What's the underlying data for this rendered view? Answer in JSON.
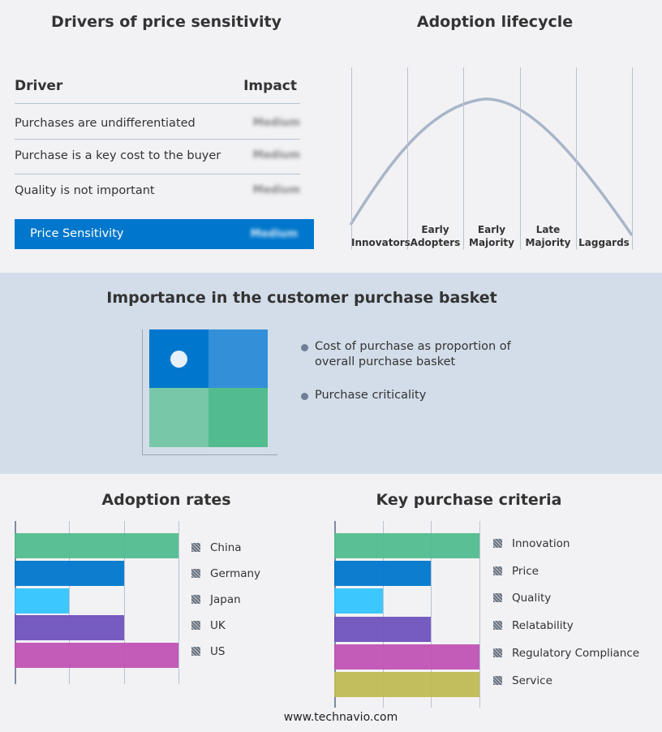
{
  "drivers": {
    "title": "Drivers of price sensitivity",
    "col_driver": "Driver",
    "col_impact": "Impact",
    "rows": [
      {
        "driver": "Purchases are undifferentiated",
        "impact": "Medium"
      },
      {
        "driver": "Purchase is a key cost to the buyer",
        "impact": "Medium"
      },
      {
        "driver": "Quality is not important",
        "impact": "Medium"
      }
    ],
    "summary": {
      "label": "Price Sensitivity",
      "impact": "Medium"
    }
  },
  "lifecycle": {
    "title": "Adoption lifecycle",
    "stages": [
      [
        "Innovators"
      ],
      [
        "Early",
        "Adopters"
      ],
      [
        "Early",
        "Majority"
      ],
      [
        "Late",
        "Majority"
      ],
      [
        "Laggards"
      ]
    ],
    "peak_stage": "Early Majority"
  },
  "basket": {
    "title": "Importance in the customer purchase basket",
    "bullets": [
      "Cost of purchase as proportion of overall purchase basket",
      "Purchase criticality"
    ],
    "quadrant_colors": [
      "#0077cc",
      "#3390d8",
      "#77c7a8",
      "#52bc8f"
    ],
    "marker_quadrant": "top-left"
  },
  "chart_data": [
    {
      "type": "bar",
      "orientation": "horizontal",
      "title": "Adoption rates",
      "categories": [
        "China",
        "Germany",
        "Japan",
        "UK",
        "US"
      ],
      "values": [
        3,
        2,
        1,
        2,
        3
      ],
      "xlim": [
        0,
        3
      ],
      "grid": true,
      "legend": "right",
      "colors": [
        "#52bc8f",
        "#0077cc",
        "#33c4ff",
        "#6f52bd",
        "#c052b5"
      ]
    },
    {
      "type": "bar",
      "orientation": "horizontal",
      "title": "Key purchase criteria",
      "categories": [
        "Innovation",
        "Price",
        "Quality",
        "Relatability",
        "Regulatory Compliance",
        "Service"
      ],
      "values": [
        3,
        2,
        1,
        2,
        3,
        3
      ],
      "xlim": [
        0,
        3
      ],
      "grid": true,
      "legend": "right",
      "colors": [
        "#52bc8f",
        "#0077cc",
        "#33c4ff",
        "#6f52bd",
        "#c052b5",
        "#bfba52"
      ]
    }
  ],
  "footer": "www.technavio.com"
}
